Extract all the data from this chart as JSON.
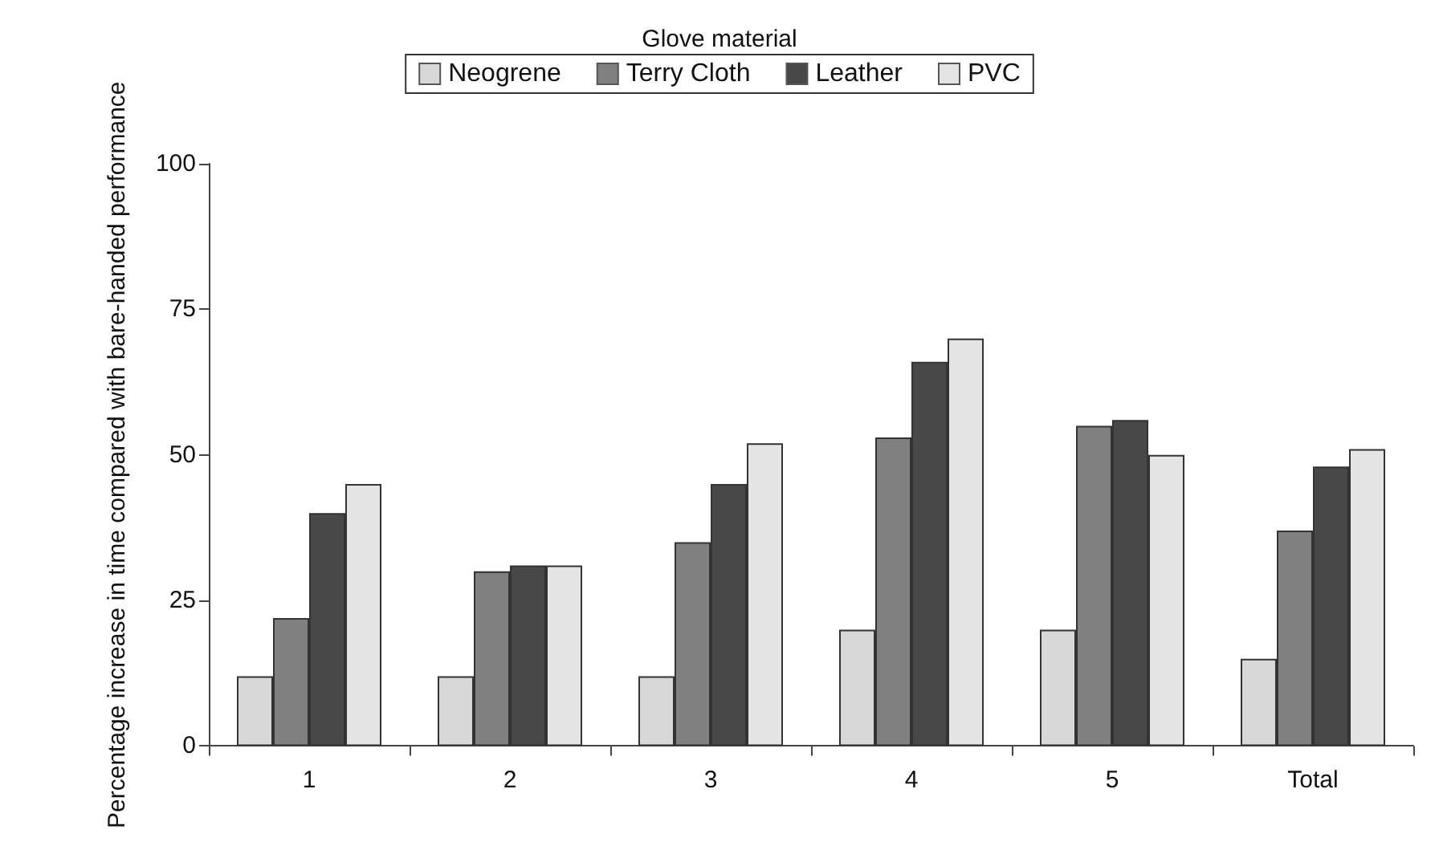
{
  "chart_data": {
    "type": "bar",
    "legend_title": "Glove material",
    "ylabel": "Percentage increase in time compared with bare-handed performance",
    "categories": [
      "1",
      "2",
      "3",
      "4",
      "5",
      "Total"
    ],
    "series": [
      {
        "name": "Neogrene",
        "color": "#d8d8d8",
        "values": [
          12,
          12,
          12,
          20,
          20,
          15
        ]
      },
      {
        "name": "Terry Cloth",
        "color": "#808080",
        "values": [
          22,
          30,
          35,
          53,
          55,
          37
        ]
      },
      {
        "name": "Leather",
        "color": "#484848",
        "values": [
          40,
          31,
          45,
          66,
          56,
          48
        ]
      },
      {
        "name": "PVC",
        "color": "#e4e4e4",
        "values": [
          45,
          31,
          52,
          70,
          50,
          51
        ]
      }
    ],
    "ylim": [
      0,
      100
    ],
    "yticks": [
      0,
      25,
      50,
      75,
      100
    ],
    "grid": false,
    "legend": "top"
  }
}
